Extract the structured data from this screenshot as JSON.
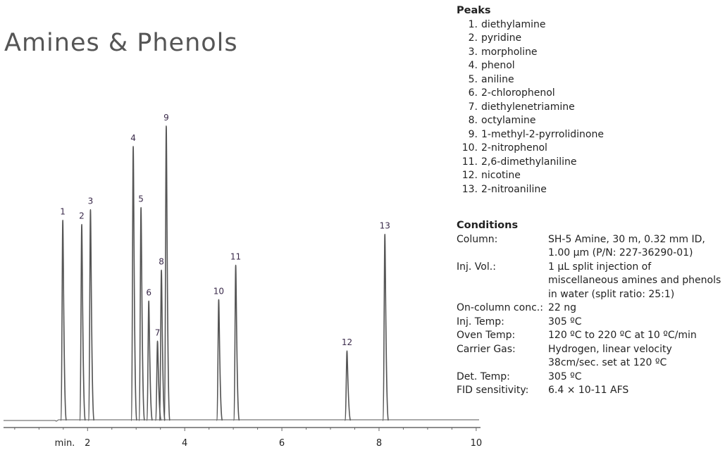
{
  "title": "Amines & Phenols",
  "peaks_heading": "Peaks",
  "peaks": [
    {
      "num": "1.",
      "name": "diethylamine"
    },
    {
      "num": "2.",
      "name": "pyridine"
    },
    {
      "num": "3.",
      "name": "morpholine"
    },
    {
      "num": "4.",
      "name": "phenol"
    },
    {
      "num": "5.",
      "name": "aniline"
    },
    {
      "num": "6.",
      "name": "2-chlorophenol"
    },
    {
      "num": "7.",
      "name": "diethylenetriamine"
    },
    {
      "num": "8.",
      "name": "octylamine"
    },
    {
      "num": "9.",
      "name": "1-methyl-2-pyrrolidinone"
    },
    {
      "num": "10.",
      "name": "2-nitrophenol"
    },
    {
      "num": "11.",
      "name": "2,6-dimethylaniline"
    },
    {
      "num": "12.",
      "name": "nicotine"
    },
    {
      "num": "13.",
      "name": "2-nitroaniline"
    }
  ],
  "conditions_heading": "Conditions",
  "conditions": [
    {
      "label": "Column:",
      "value": "SH-5 Amine, 30 m, 0.32 mm ID, 1.00 µm (P/N: 227-36290-01)"
    },
    {
      "label": "Inj. Vol.:",
      "value": "1 µL split injection of miscellaneous amines and phenols in water (split ratio: 25:1)"
    },
    {
      "label": "On-column conc.:",
      "value": "22 ng"
    },
    {
      "label": "Inj. Temp:",
      "value": "305 ºC"
    },
    {
      "label": "Oven Temp:",
      "value": "120 ºC to 220 ºC at 10 ºC/min"
    },
    {
      "label": "Carrier Gas:",
      "value": "Hydrogen, linear velocity 38cm/sec. set at 120 ºC"
    },
    {
      "label": "Det. Temp:",
      "value": "305 ºC"
    },
    {
      "label": "FID sensitivity:",
      "value": "6.4 × 10-11 AFS"
    }
  ],
  "chart_data": {
    "type": "line",
    "title": "Amines & Phenols",
    "xlabel": "min.",
    "ylabel": "",
    "xlim": [
      0.27,
      10.06
    ],
    "ylim": [
      0,
      430
    ],
    "xticks": [
      2,
      4,
      6,
      8,
      10
    ],
    "minor_tick_step": 0.5,
    "grid": false,
    "line_color": "#555555",
    "peaks": [
      {
        "label": "1",
        "rt": 1.49,
        "height": 285
      },
      {
        "label": "2",
        "rt": 1.88,
        "height": 279
      },
      {
        "label": "3",
        "rt": 2.06,
        "height": 300
      },
      {
        "label": "4",
        "rt": 2.94,
        "height": 390
      },
      {
        "label": "5",
        "rt": 3.1,
        "height": 303
      },
      {
        "label": "6",
        "rt": 3.26,
        "height": 170
      },
      {
        "label": "7",
        "rt": 3.44,
        "height": 113
      },
      {
        "label": "8",
        "rt": 3.52,
        "height": 214
      },
      {
        "label": "9",
        "rt": 3.62,
        "height": 419
      },
      {
        "label": "10",
        "rt": 4.7,
        "height": 172
      },
      {
        "label": "11",
        "rt": 5.05,
        "height": 221
      },
      {
        "label": "12",
        "rt": 7.34,
        "height": 99
      },
      {
        "label": "13",
        "rt": 8.12,
        "height": 265
      }
    ]
  }
}
